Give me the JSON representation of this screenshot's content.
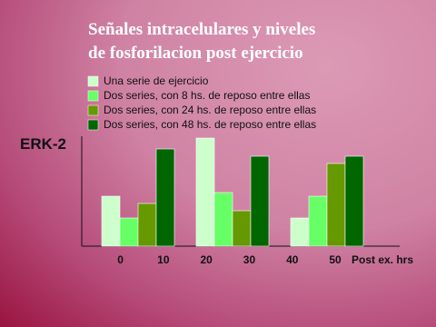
{
  "chart_data": {
    "type": "bar",
    "title": [
      "Señales intracelulares y niveles",
      "de fosforilacion post ejercicio"
    ],
    "y_label": "ERK-2",
    "x_label": "Post ex. hrs",
    "categories": [
      null,
      null,
      null
    ],
    "series": [
      {
        "name": "Una serie de ejercicio",
        "color": "#ccffcc",
        "values": [
          55,
          119,
          31
        ]
      },
      {
        "name": "Dos series, con 8 hs. de reposo entre ellas",
        "color": "#66ff66",
        "values": [
          31,
          59,
          55
        ]
      },
      {
        "name": "Dos series, con 24 hs. de reposo entre ellas",
        "color": "#669900",
        "values": [
          47,
          39,
          91
        ]
      },
      {
        "name": "Dos series, con 48 hs. de reposo entre ellas",
        "color": "#006600",
        "values": [
          107,
          99,
          99
        ]
      }
    ],
    "ylim": [
      0,
      120
    ],
    "xlim": [
      -9,
      65
    ],
    "xticks": [
      0,
      10,
      20,
      30,
      40,
      50
    ]
  }
}
